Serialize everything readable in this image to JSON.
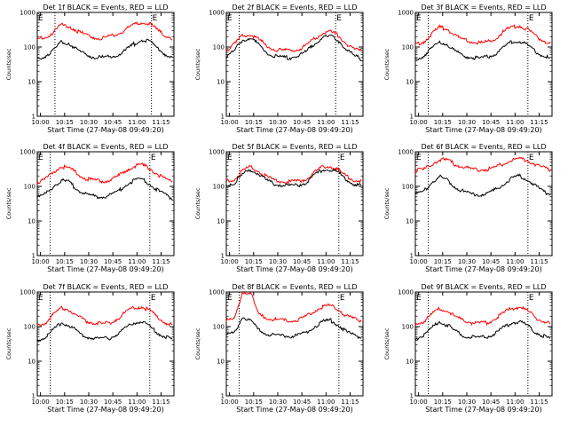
{
  "chart_data": [
    {
      "type": "line",
      "title": "Det 1f BLACK = Events, RED = LLD",
      "xlabel": "Start Time (27-May-08 09:49:20)",
      "ylabel": "Counts/sec",
      "y_scale": "log",
      "ylim": [
        1,
        1000
      ],
      "y_ticks": [
        "1",
        "10",
        "100",
        "1000"
      ],
      "x_ticks": [
        "10:00",
        "10:15",
        "10:30",
        "10:45",
        "11:00",
        "11:15"
      ],
      "dotted_markers": [
        "10:09",
        "11:09"
      ],
      "marker_label": "E",
      "series": [
        {
          "color": "#ff0000",
          "x": [
            "09:58",
            "10:03",
            "10:08",
            "10:13",
            "10:18",
            "10:23",
            "10:28",
            "10:33",
            "10:38",
            "10:43",
            "10:48",
            "10:53",
            "10:58",
            "11:03",
            "11:08",
            "11:13",
            "11:18",
            "11:22"
          ],
          "values": [
            170,
            190,
            270,
            430,
            400,
            290,
            220,
            190,
            180,
            200,
            240,
            320,
            430,
            520,
            470,
            300,
            210,
            180
          ]
        },
        {
          "color": "#000000",
          "x": [
            "09:58",
            "10:03",
            "10:08",
            "10:13",
            "10:18",
            "10:23",
            "10:28",
            "10:33",
            "10:38",
            "10:43",
            "10:48",
            "10:53",
            "10:58",
            "11:03",
            "11:08",
            "11:13",
            "11:18",
            "11:22"
          ],
          "values": [
            45,
            55,
            80,
            140,
            130,
            80,
            60,
            52,
            50,
            52,
            60,
            80,
            120,
            160,
            150,
            90,
            60,
            50
          ]
        }
      ]
    },
    {
      "type": "line",
      "title": "Det 2f BLACK = Events, RED = LLD",
      "xlabel": "Start Time (27-May-08 09:49:20)",
      "ylabel": "Counts/sec",
      "y_scale": "log",
      "ylim": [
        1,
        1000
      ],
      "y_ticks": [
        "1",
        "10",
        "100",
        "1000"
      ],
      "x_ticks": [
        "10:00",
        "10:15",
        "10:30",
        "10:45",
        "11:00",
        "11:15"
      ],
      "dotted_markers": [
        "10:06",
        "11:06"
      ],
      "marker_label": "E",
      "series": [
        {
          "color": "#ff0000",
          "x": [
            "09:58",
            "10:03",
            "10:08",
            "10:13",
            "10:18",
            "10:23",
            "10:28",
            "10:33",
            "10:38",
            "10:43",
            "10:48",
            "10:53",
            "10:58",
            "11:03",
            "11:08",
            "11:13",
            "11:18",
            "11:22"
          ],
          "values": [
            80,
            120,
            210,
            230,
            170,
            110,
            85,
            80,
            80,
            85,
            110,
            180,
            250,
            270,
            210,
            120,
            85,
            75
          ]
        },
        {
          "color": "#000000",
          "x": [
            "09:58",
            "10:03",
            "10:08",
            "10:13",
            "10:18",
            "10:23",
            "10:28",
            "10:33",
            "10:38",
            "10:43",
            "10:48",
            "10:53",
            "10:58",
            "11:03",
            "11:08",
            "11:13",
            "11:18",
            "11:22"
          ],
          "values": [
            50,
            80,
            160,
            180,
            120,
            70,
            55,
            50,
            50,
            55,
            75,
            130,
            190,
            200,
            150,
            80,
            55,
            45
          ]
        }
      ]
    },
    {
      "type": "line",
      "title": "Det 3f BLACK = Events, RED = LLD",
      "xlabel": "Start Time (27-May-08 09:49:20)",
      "ylabel": "Counts/sec",
      "y_scale": "log",
      "ylim": [
        1,
        1000
      ],
      "y_ticks": [
        "1",
        "10",
        "100",
        "1000"
      ],
      "x_ticks": [
        "10:00",
        "10:15",
        "10:30",
        "10:45",
        "11:00",
        "11:15"
      ],
      "dotted_markers": [
        "10:06",
        "11:08"
      ],
      "marker_label": "E",
      "series": [
        {
          "color": "#ff0000",
          "x": [
            "09:58",
            "10:03",
            "10:08",
            "10:13",
            "10:18",
            "10:23",
            "10:28",
            "10:33",
            "10:38",
            "10:43",
            "10:48",
            "10:53",
            "10:58",
            "11:03",
            "11:08",
            "11:13",
            "11:18",
            "11:22"
          ],
          "values": [
            120,
            140,
            230,
            370,
            330,
            210,
            160,
            140,
            130,
            140,
            180,
            280,
            380,
            410,
            320,
            200,
            150,
            130
          ]
        },
        {
          "color": "#000000",
          "x": [
            "09:58",
            "10:03",
            "10:08",
            "10:13",
            "10:18",
            "10:23",
            "10:28",
            "10:33",
            "10:38",
            "10:43",
            "10:48",
            "10:53",
            "10:58",
            "11:03",
            "11:08",
            "11:13",
            "11:18",
            "11:22"
          ],
          "values": [
            45,
            55,
            90,
            140,
            120,
            75,
            55,
            50,
            48,
            52,
            65,
            100,
            140,
            150,
            110,
            70,
            55,
            45
          ]
        }
      ]
    },
    {
      "type": "line",
      "title": "Det 4f BLACK = Events, RED = LLD",
      "xlabel": "Start Time (27-May-08 09:49:20)",
      "ylabel": "Counts/sec",
      "y_scale": "log",
      "ylim": [
        1,
        1000
      ],
      "y_ticks": [
        "1",
        "10",
        "100",
        "1000"
      ],
      "x_ticks": [
        "10:00",
        "10:15",
        "10:30",
        "10:45",
        "11:00",
        "11:15"
      ],
      "dotted_markers": [
        "10:06",
        "11:08"
      ],
      "marker_label": "E",
      "series": [
        {
          "color": "#ff0000",
          "x": [
            "09:58",
            "10:03",
            "10:08",
            "10:13",
            "10:18",
            "10:23",
            "10:28",
            "10:33",
            "10:38",
            "10:43",
            "10:48",
            "10:53",
            "10:58",
            "11:03",
            "11:08",
            "11:13",
            "11:18",
            "11:22"
          ],
          "values": [
            130,
            160,
            260,
            380,
            340,
            230,
            170,
            150,
            140,
            150,
            190,
            290,
            390,
            420,
            330,
            220,
            160,
            140
          ]
        },
        {
          "color": "#000000",
          "x": [
            "09:58",
            "10:03",
            "10:08",
            "10:13",
            "10:18",
            "10:23",
            "10:28",
            "10:33",
            "10:38",
            "10:43",
            "10:48",
            "10:53",
            "10:58",
            "11:03",
            "11:08",
            "11:13",
            "11:18",
            "11:22"
          ],
          "values": [
            45,
            60,
            100,
            150,
            130,
            80,
            60,
            52,
            50,
            55,
            70,
            110,
            150,
            160,
            120,
            75,
            55,
            45
          ]
        }
      ]
    },
    {
      "type": "line",
      "title": "Det 5f BLACK = Events, RED = LLD",
      "xlabel": "Start Time (27-May-08 09:49:20)",
      "ylabel": "Counts/sec",
      "y_scale": "log",
      "ylim": [
        1,
        1000
      ],
      "y_ticks": [
        "1",
        "10",
        "100",
        "1000"
      ],
      "x_ticks": [
        "10:00",
        "10:15",
        "10:30",
        "10:45",
        "11:00",
        "11:15"
      ],
      "dotted_markers": [
        "10:06",
        "11:08"
      ],
      "marker_label": "E",
      "series": [
        {
          "color": "#ff0000",
          "x": [
            "09:58",
            "10:03",
            "10:08",
            "10:13",
            "10:18",
            "10:23",
            "10:28",
            "10:33",
            "10:38",
            "10:43",
            "10:48",
            "10:53",
            "10:58",
            "11:03",
            "11:08",
            "11:13",
            "11:18",
            "11:22"
          ],
          "values": [
            140,
            160,
            280,
            360,
            280,
            190,
            150,
            140,
            135,
            140,
            170,
            260,
            360,
            380,
            290,
            190,
            150,
            140
          ]
        },
        {
          "color": "#000000",
          "x": [
            "09:58",
            "10:03",
            "10:08",
            "10:13",
            "10:18",
            "10:23",
            "10:28",
            "10:33",
            "10:38",
            "10:43",
            "10:48",
            "10:53",
            "10:58",
            "11:03",
            "11:08",
            "11:13",
            "11:18",
            "11:22"
          ],
          "values": [
            110,
            125,
            220,
            300,
            230,
            150,
            115,
            110,
            105,
            110,
            130,
            210,
            300,
            310,
            240,
            150,
            115,
            105
          ]
        }
      ]
    },
    {
      "type": "line",
      "title": "Det 6f BLACK = Events, RED = LLD",
      "xlabel": "Start Time (27-May-08 09:49:20)",
      "ylabel": "Counts/sec",
      "y_scale": "log",
      "ylim": [
        1,
        1000
      ],
      "y_ticks": [
        "1",
        "10",
        "100",
        "1000"
      ],
      "x_ticks": [
        "10:00",
        "10:15",
        "10:30",
        "10:45",
        "11:00",
        "11:15"
      ],
      "dotted_markers": [
        "10:06",
        "11:08"
      ],
      "marker_label": "E",
      "series": [
        {
          "color": "#ff0000",
          "x": [
            "09:58",
            "10:03",
            "10:08",
            "10:13",
            "10:18",
            "10:23",
            "10:28",
            "10:33",
            "10:38",
            "10:43",
            "10:48",
            "10:53",
            "10:58",
            "11:03",
            "11:08",
            "11:13",
            "11:18",
            "11:22"
          ],
          "values": [
            290,
            300,
            420,
            600,
            560,
            430,
            360,
            320,
            300,
            310,
            360,
            460,
            560,
            620,
            560,
            430,
            340,
            300
          ]
        },
        {
          "color": "#000000",
          "x": [
            "09:58",
            "10:03",
            "10:08",
            "10:13",
            "10:18",
            "10:23",
            "10:28",
            "10:33",
            "10:38",
            "10:43",
            "10:48",
            "10:53",
            "10:58",
            "11:03",
            "11:08",
            "11:13",
            "11:18",
            "11:22"
          ],
          "values": [
            60,
            70,
            130,
            190,
            150,
            95,
            70,
            60,
            58,
            62,
            80,
            120,
            170,
            200,
            160,
            100,
            70,
            60
          ]
        }
      ]
    },
    {
      "type": "line",
      "title": "Det 7f BLACK = Events, RED = LLD",
      "xlabel": "Start Time (27-May-08 09:49:20)",
      "ylabel": "Counts/sec",
      "y_scale": "log",
      "ylim": [
        1,
        1000
      ],
      "y_ticks": [
        "1",
        "10",
        "100",
        "1000"
      ],
      "x_ticks": [
        "10:00",
        "10:15",
        "10:30",
        "10:45",
        "11:00",
        "11:15"
      ],
      "dotted_markers": [
        "10:06",
        "11:08"
      ],
      "marker_label": "E",
      "series": [
        {
          "color": "#ff0000",
          "x": [
            "09:58",
            "10:03",
            "10:08",
            "10:13",
            "10:18",
            "10:23",
            "10:28",
            "10:33",
            "10:38",
            "10:43",
            "10:48",
            "10:53",
            "10:58",
            "11:03",
            "11:08",
            "11:13",
            "11:18",
            "11:22"
          ],
          "values": [
            110,
            130,
            220,
            350,
            310,
            200,
            150,
            130,
            120,
            130,
            170,
            260,
            350,
            380,
            290,
            180,
            130,
            110
          ]
        },
        {
          "color": "#000000",
          "x": [
            "09:58",
            "10:03",
            "10:08",
            "10:13",
            "10:18",
            "10:23",
            "10:28",
            "10:33",
            "10:38",
            "10:43",
            "10:48",
            "10:53",
            "10:58",
            "11:03",
            "11:08",
            "11:13",
            "11:18",
            "11:22"
          ],
          "values": [
            40,
            50,
            80,
            130,
            110,
            70,
            52,
            46,
            44,
            47,
            60,
            90,
            130,
            140,
            100,
            65,
            50,
            42
          ]
        }
      ]
    },
    {
      "type": "line",
      "title": "Det 8f BLACK = Events, RED = LLD",
      "xlabel": "Start Time (27-May-08 09:49:20)",
      "ylabel": "Counts/sec",
      "y_scale": "log",
      "ylim": [
        1,
        1000
      ],
      "y_ticks": [
        "1",
        "10",
        "100",
        "1000"
      ],
      "x_ticks": [
        "10:00",
        "10:15",
        "10:30",
        "10:45",
        "11:00",
        "11:15"
      ],
      "dotted_markers": [
        "10:06",
        "11:08"
      ],
      "marker_label": "E",
      "series": [
        {
          "color": "#ff0000",
          "x": [
            "09:58",
            "10:03",
            "10:08",
            "10:13",
            "10:18",
            "10:23",
            "10:28",
            "10:33",
            "10:38",
            "10:43",
            "10:48",
            "10:53",
            "10:58",
            "11:03",
            "11:08",
            "11:13",
            "11:18",
            "11:22"
          ],
          "values": [
            150,
            160,
            1000,
            1000,
            220,
            180,
            160,
            150,
            150,
            160,
            200,
            290,
            380,
            400,
            310,
            200,
            160,
            150
          ]
        },
        {
          "color": "#000000",
          "x": [
            "09:58",
            "10:03",
            "10:08",
            "10:13",
            "10:18",
            "10:23",
            "10:28",
            "10:33",
            "10:38",
            "10:43",
            "10:48",
            "10:53",
            "10:58",
            "11:03",
            "11:08",
            "11:13",
            "11:18",
            "11:22"
          ],
          "values": [
            55,
            65,
            190,
            150,
            80,
            62,
            56,
            54,
            53,
            56,
            70,
            100,
            140,
            150,
            110,
            70,
            56,
            50
          ]
        }
      ]
    },
    {
      "type": "line",
      "title": "Det 9f BLACK = Events, RED = LLD",
      "xlabel": "Start Time (27-May-08 09:49:20)",
      "ylabel": "Counts/sec",
      "y_scale": "log",
      "ylim": [
        1,
        1000
      ],
      "y_ticks": [
        "1",
        "10",
        "100",
        "1000"
      ],
      "x_ticks": [
        "10:00",
        "10:15",
        "10:30",
        "10:45",
        "11:00",
        "11:15"
      ],
      "dotted_markers": [
        "10:06",
        "11:08"
      ],
      "marker_label": "E",
      "series": [
        {
          "color": "#ff0000",
          "x": [
            "09:58",
            "10:03",
            "10:08",
            "10:13",
            "10:18",
            "10:23",
            "10:28",
            "10:33",
            "10:38",
            "10:43",
            "10:48",
            "10:53",
            "10:58",
            "11:03",
            "11:08",
            "11:13",
            "11:18",
            "11:22"
          ],
          "values": [
            120,
            140,
            220,
            330,
            290,
            190,
            150,
            130,
            125,
            130,
            170,
            250,
            340,
            370,
            280,
            180,
            140,
            120
          ]
        },
        {
          "color": "#000000",
          "x": [
            "09:58",
            "10:03",
            "10:08",
            "10:13",
            "10:18",
            "10:23",
            "10:28",
            "10:33",
            "10:38",
            "10:43",
            "10:48",
            "10:53",
            "10:58",
            "11:03",
            "11:08",
            "11:13",
            "11:18",
            "11:22"
          ],
          "values": [
            45,
            55,
            90,
            140,
            110,
            72,
            55,
            50,
            48,
            52,
            65,
            95,
            130,
            140,
            105,
            68,
            52,
            45
          ]
        }
      ]
    }
  ]
}
